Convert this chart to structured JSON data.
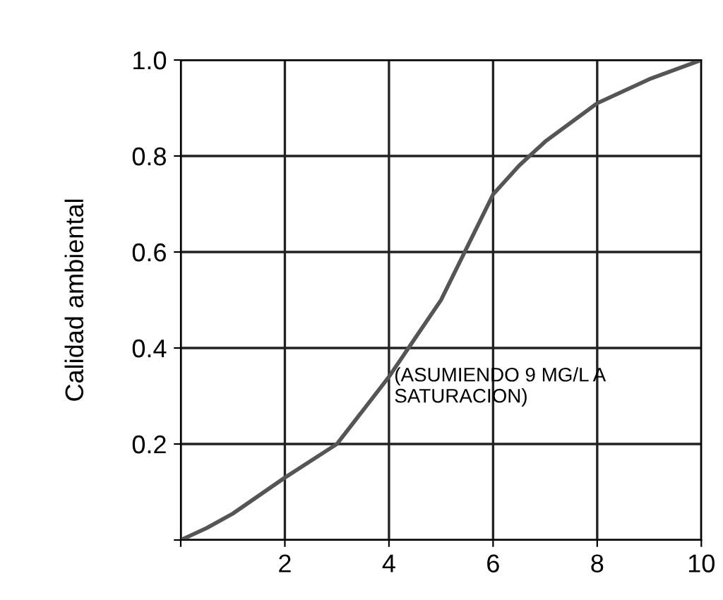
{
  "chart_data": {
    "type": "line",
    "ylabel": "Calidad ambiental",
    "x": [
      0,
      0.5,
      1,
      2,
      3,
      4,
      4.5,
      5,
      5.5,
      6,
      6.5,
      7,
      8,
      9,
      10
    ],
    "series": [
      {
        "color": "#555555",
        "values": [
          0,
          0.025,
          0.055,
          0.13,
          0.2,
          0.34,
          0.42,
          0.5,
          0.61,
          0.72,
          0.78,
          0.83,
          0.91,
          0.96,
          1.0
        ]
      }
    ],
    "xlim": [
      0,
      10
    ],
    "ylim": [
      0,
      1.0
    ],
    "xticks": [
      {
        "value": 0,
        "label": null
      },
      2,
      4,
      6,
      8,
      10
    ],
    "yticks": [
      {
        "value": 0,
        "label": null
      },
      0.2,
      0.4,
      0.6,
      0.8,
      {
        "value": 1.0,
        "label": "1.0"
      }
    ],
    "grid": true,
    "marker": "none",
    "line_style": "solid",
    "annotations": [
      {
        "text": "(ASUMIENDO 9 MG/L A\nSATURACION)",
        "x": 4.1,
        "y": 0.36
      }
    ]
  }
}
